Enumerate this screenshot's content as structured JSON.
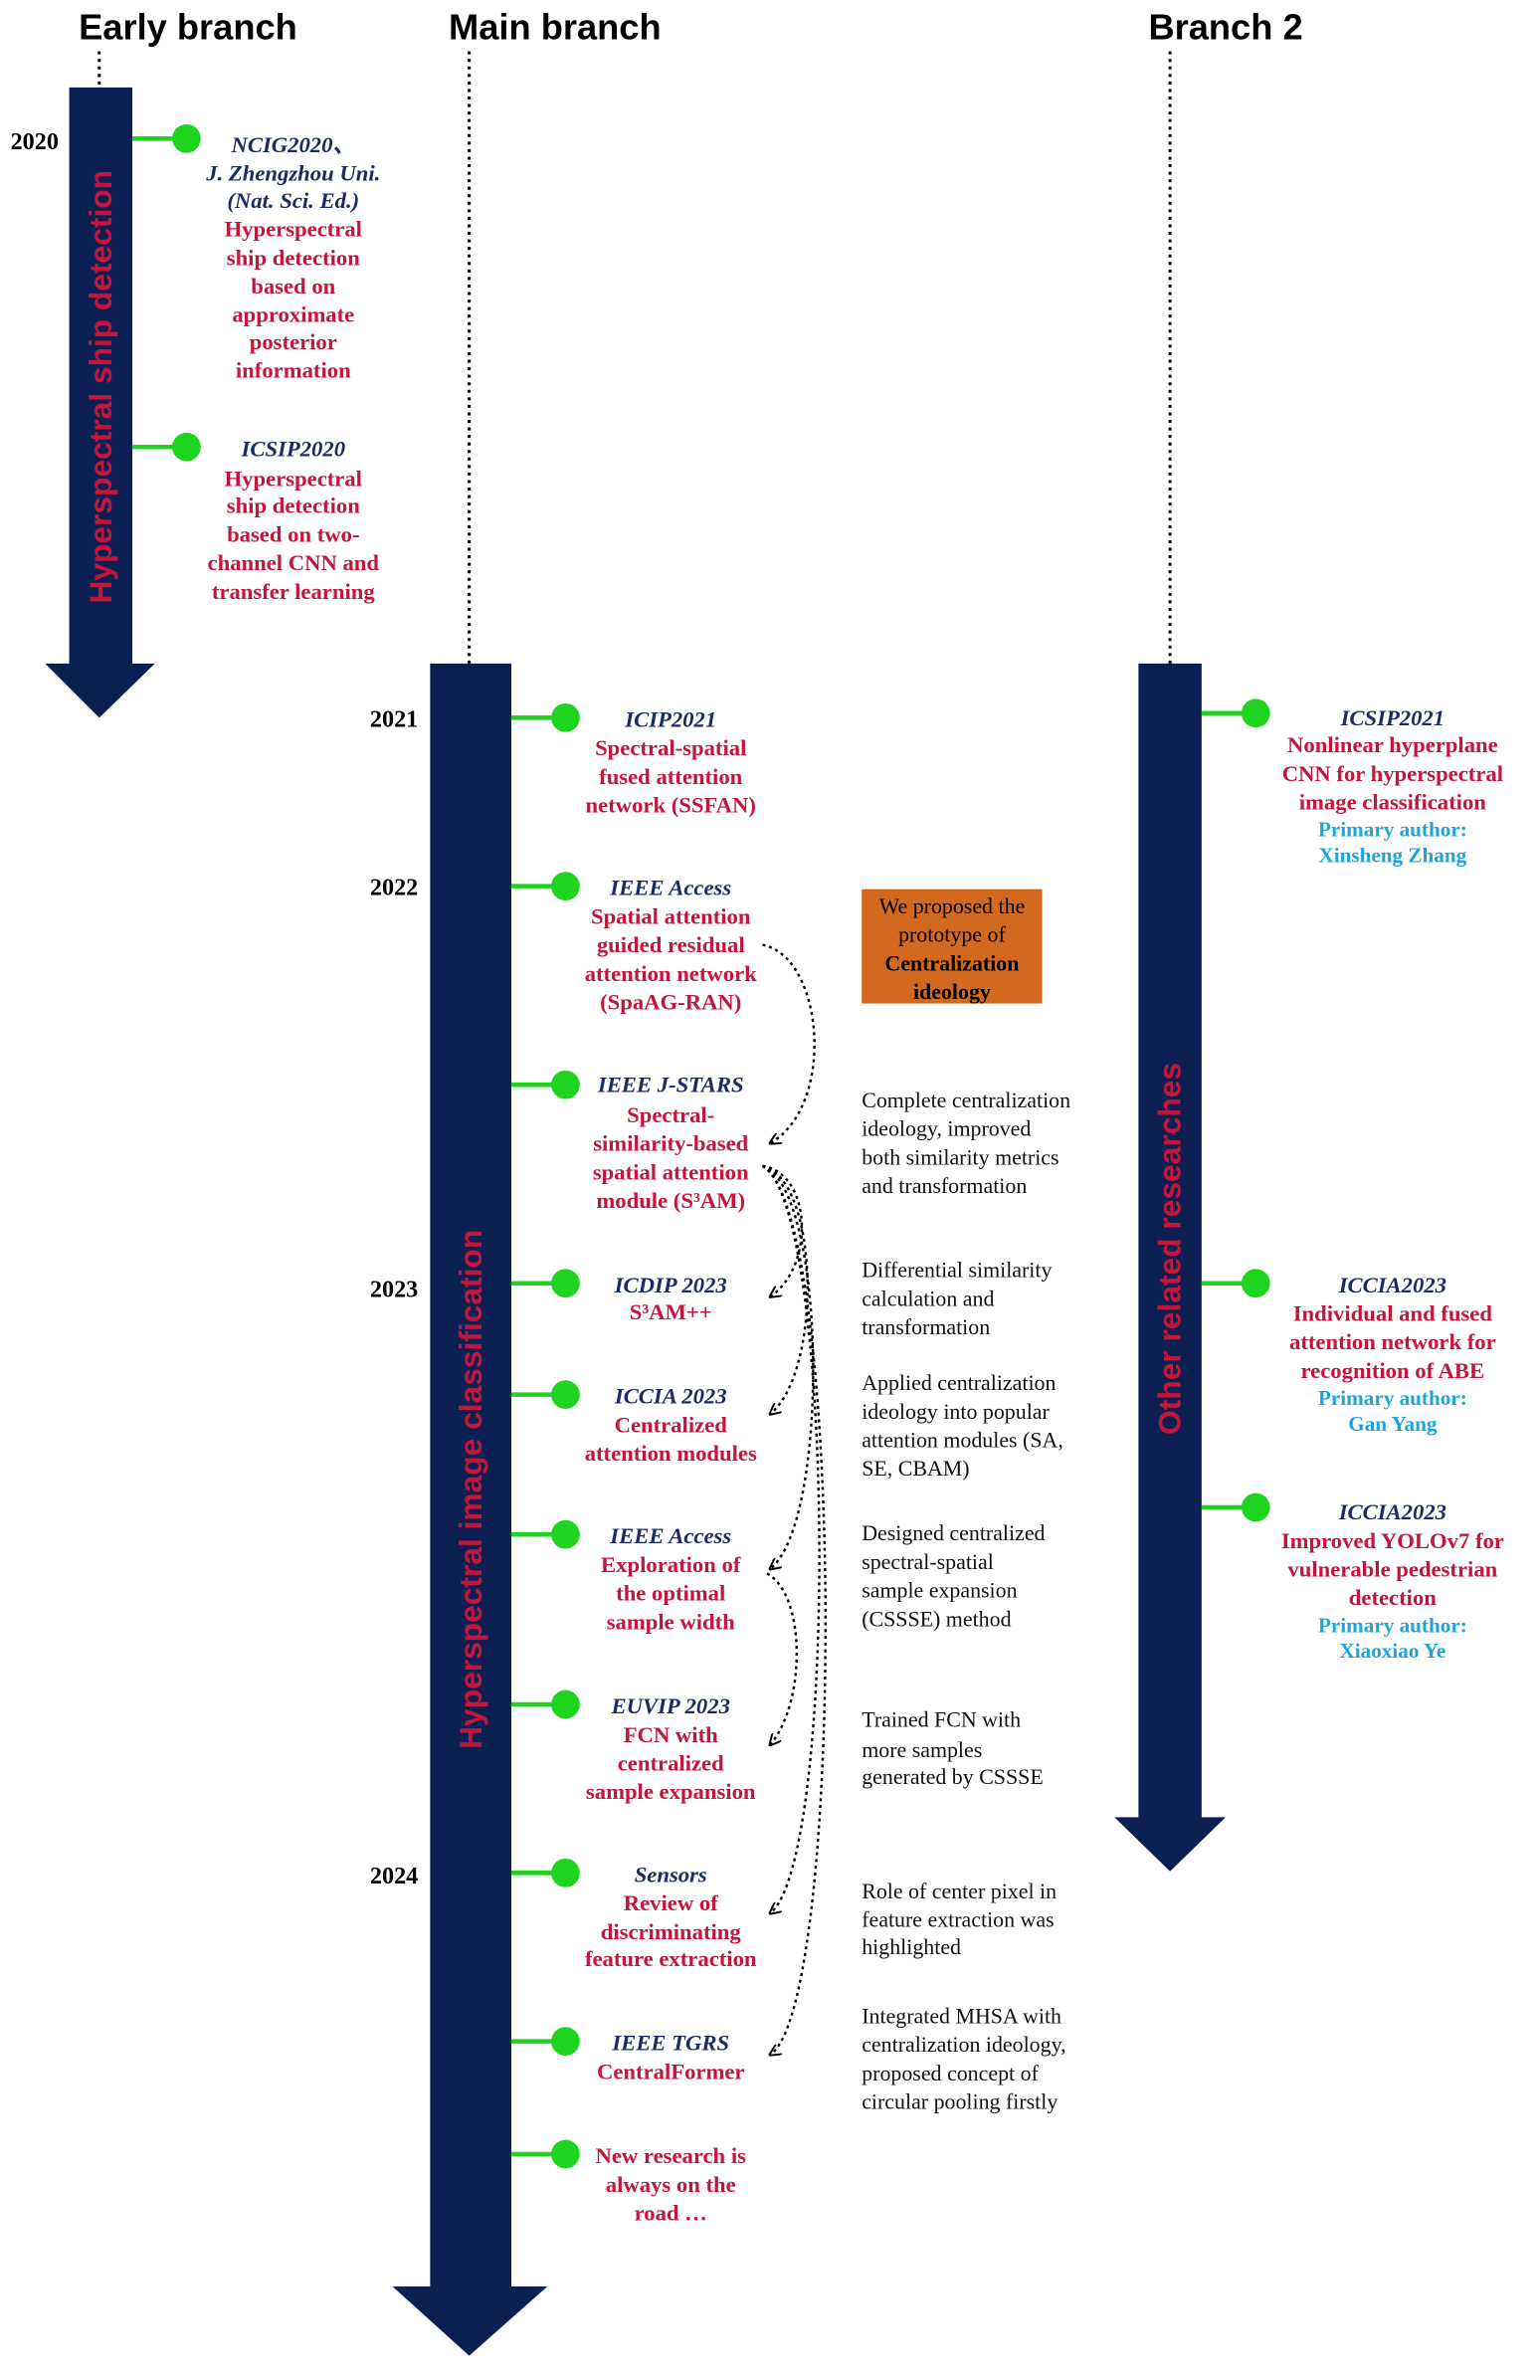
{
  "headers": {
    "early": "Early branch",
    "main": "Main branch",
    "branch2": "Branch 2"
  },
  "arrows": {
    "early": "Hyperspectral ship detection",
    "main": "Hyperspectral image classification",
    "branch2": "Other related researches"
  },
  "years": [
    "2020",
    "2021",
    "2022",
    "2023",
    "2024"
  ],
  "early_entries": [
    {
      "venue": [
        "NCIG2020、",
        "J. Zhengzhou Uni.",
        "(Nat. Sci. Ed.)"
      ],
      "title": [
        "Hyperspectral",
        "ship detection",
        "based on",
        "approximate",
        "posterior",
        "information"
      ]
    },
    {
      "venue": [
        "ICSIP2020"
      ],
      "title": [
        "Hyperspectral",
        "ship detection",
        "based on two-",
        "channel CNN and",
        "transfer learning"
      ]
    }
  ],
  "main_entries": [
    {
      "venue": "ICIP2021",
      "title": [
        "Spectral-spatial",
        "fused attention",
        "network (SSFAN)"
      ]
    },
    {
      "venue": "IEEE Access",
      "title": [
        "Spatial attention",
        "guided residual",
        "attention network",
        "(SpaAG-RAN)"
      ]
    },
    {
      "venue": "IEEE J-STARS",
      "title": [
        "Spectral-",
        "similarity-based",
        "spatial attention",
        "module (S³AM)"
      ]
    },
    {
      "venue": "ICDIP 2023",
      "title": [
        "S³AM++"
      ]
    },
    {
      "venue": "ICCIA 2023",
      "title": [
        "Centralized",
        "attention modules"
      ]
    },
    {
      "venue": "IEEE Access",
      "title": [
        "Exploration of",
        "the optimal",
        "sample width"
      ]
    },
    {
      "venue": "EUVIP 2023",
      "title": [
        "FCN with",
        "centralized",
        "sample expansion"
      ]
    },
    {
      "venue": "Sensors",
      "title": [
        "Review of",
        "discriminating",
        "feature extraction"
      ]
    },
    {
      "venue": "IEEE TGRS",
      "title": [
        "CentralFormer"
      ]
    },
    {
      "venue": "",
      "title": [
        "New research is",
        "always on the",
        "road …"
      ]
    }
  ],
  "branch2_entries": [
    {
      "venue": "ICSIP2021",
      "title": [
        "Nonlinear hyperplane",
        "CNN for hyperspectral",
        "image classification"
      ],
      "author_label": "Primary author:",
      "author": "Xinsheng Zhang"
    },
    {
      "venue": "ICCIA2023",
      "title": [
        "Individual and fused",
        "attention network for",
        "recognition of ABE"
      ],
      "author_label": "Primary author:",
      "author": "Gan Yang"
    },
    {
      "venue": "ICCIA2023",
      "title": [
        "Improved YOLOv7 for",
        "vulnerable pedestrian",
        "detection"
      ],
      "author_label": "Primary author:",
      "author": "Xiaoxiao Ye"
    }
  ],
  "prototype_box": [
    "We proposed the",
    "prototype of",
    "Centralization",
    "ideology"
  ],
  "notes": [
    [
      "Complete centralization",
      "ideology, improved",
      "both similarity metrics",
      "and transformation"
    ],
    [
      "Differential similarity",
      "calculation and",
      "transformation"
    ],
    [
      "Applied centralization",
      "ideology into popular",
      "attention modules (SA,",
      "SE, CBAM)"
    ],
    [
      "Designed centralized",
      "spectral-spatial",
      "sample expansion",
      "(CSSSE) method"
    ],
    [
      "Trained FCN with",
      "more samples",
      "generated by CSSSE"
    ],
    [
      "Role of center pixel in",
      "feature extraction was",
      "highlighted"
    ],
    [
      "Integrated MHSA with",
      "centralization ideology,",
      "proposed concept of",
      "circular pooling firstly"
    ]
  ],
  "colors": {
    "arrow": "#0c1f52",
    "title_red": "#c4163a",
    "venue_navy": "#1b2b63",
    "author_cyan": "#1fa3dc",
    "connector_green": "#1ed41e",
    "box_orange": "#d2691e"
  }
}
